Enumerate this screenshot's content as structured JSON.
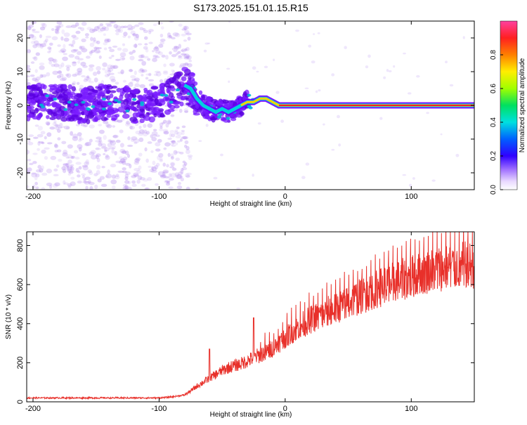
{
  "title": "S173.2025.151.01.15.R15",
  "colors": {
    "snr_line": "#e8302a",
    "spectrogram_low": "#c9a6f5",
    "spectrogram_mid": "#6a00ff",
    "spectrogram_high": "#ff2020"
  },
  "chart_data": [
    {
      "type": "heatmap",
      "title": "S173.2025.151.01.15.R15",
      "xlabel": "Height of straight line (km)",
      "ylabel": "Frequency (Hz)",
      "xlim": [
        -205,
        150
      ],
      "ylim": [
        -25,
        25
      ],
      "xticks": [
        -200,
        -100,
        0,
        100
      ],
      "yticks": [
        -20,
        -10,
        0,
        10,
        20
      ],
      "colorbar": {
        "label": "Normalized spectral amplitude",
        "range": [
          0,
          1
        ],
        "ticks": [
          "0.0",
          "0.2",
          "0.4",
          "0.6",
          "0.8"
        ],
        "colormap": "rainbow (violet to magenta)"
      },
      "ridge": {
        "description": "dominant frequency track",
        "x": [
          -200,
          -180,
          -160,
          -140,
          -120,
          -100,
          -90,
          -80,
          -75,
          -70,
          -65,
          -60,
          -55,
          -50,
          -45,
          -40,
          -35,
          -30,
          -25,
          -20,
          -15,
          -10,
          -5,
          0,
          50,
          100,
          150
        ],
        "y": [
          1,
          1,
          0,
          1,
          0,
          1,
          3,
          6,
          5,
          2,
          0,
          -1,
          -2,
          -1,
          -2,
          -1,
          0,
          1,
          1,
          2,
          2,
          1,
          0,
          0,
          0,
          0,
          0
        ]
      }
    },
    {
      "type": "line",
      "xlabel": "Height of straight line (km)",
      "ylabel": "SNR (10 * v/v)",
      "xlim": [
        -205,
        150
      ],
      "ylim": [
        0,
        870
      ],
      "xticks": [
        -200,
        -100,
        0,
        100
      ],
      "yticks": [
        0,
        200,
        400,
        600,
        800
      ],
      "series": [
        {
          "x": [
            -205,
            -180,
            -160,
            -140,
            -120,
            -100,
            -90,
            -80,
            -75,
            -70,
            -65,
            -60,
            -55,
            -50,
            -45,
            -40,
            -35,
            -30,
            -25,
            -20,
            -15,
            -10,
            -5,
            0,
            10,
            20,
            30,
            40,
            50,
            60,
            70,
            80,
            90,
            100,
            110,
            120,
            130,
            140,
            150
          ],
          "y": [
            20,
            20,
            20,
            20,
            20,
            20,
            25,
            35,
            55,
            80,
            100,
            120,
            140,
            160,
            175,
            185,
            195,
            210,
            225,
            240,
            255,
            275,
            300,
            330,
            380,
            420,
            450,
            480,
            510,
            540,
            570,
            600,
            620,
            640,
            660,
            680,
            690,
            700,
            700
          ]
        }
      ]
    }
  ]
}
